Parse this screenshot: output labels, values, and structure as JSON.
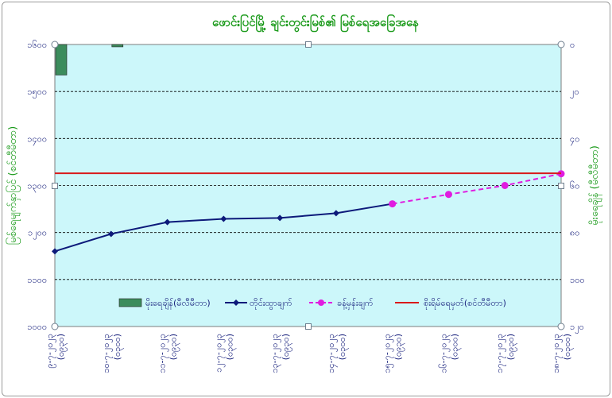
{
  "chart_data": {
    "type": "line",
    "title": "ဖောင်းပြင်မြို့ ချင်းတွင်းမြစ်၏ မြစ်ရေအခြေအနေ",
    "ylabel_left": "မြစ်ရေမျက်နှာပြင် (စင်တီမီတာ)",
    "ylabel_right": "မိုးရေချိန် (မီလီမီတာ)",
    "y_left": {
      "ylim": [
        1000,
        1600
      ],
      "ticks": [
        "၁၀၀၀",
        "၁၁၀၀",
        "၁၂၀၀",
        "၁၃၀၀",
        "၁၄၀၀",
        "၁၅၀၀",
        "၁၆၀၀"
      ]
    },
    "y_right": {
      "ylim": [
        0,
        120
      ],
      "inverted": true,
      "ticks": [
        "၀",
        "၂၀",
        "၄၀",
        "၆၀",
        "၈၀",
        "၁၀၀",
        "၁၂၀"
      ]
    },
    "categories": [
      {
        "date": "၉-၇-၂၀၂၃",
        "time": "(၀၉၃၀)"
      },
      {
        "date": "၁၀-၇-၂၀၂၃",
        "time": "(၀၃၀၀)"
      },
      {
        "date": "၁၁-၇-၂၀၂၃",
        "time": "(၀၉၃၀)"
      },
      {
        "date": "၁၂-၇-၂၀၂၃",
        "time": "(၀၃၀၀)"
      },
      {
        "date": "၁၃-၇-၂၀၂၃",
        "time": "(၀၉၃၀)"
      },
      {
        "date": "၁၄-၇-၂၀၂၃",
        "time": "(၀၃၀၀)"
      },
      {
        "date": "၁၅-၇-၂၀၂၃",
        "time": "(၀၉၃၀)"
      },
      {
        "date": "၁၆-၇-၂၀၂၃",
        "time": "(၀၃၀၀)"
      },
      {
        "date": "၁၇-၇-၂၀၂၃",
        "time": "(၀၉၃၀)"
      },
      {
        "date": "၁၈-၇-၂၀၂၃",
        "time": "(၀၃၀၀)"
      }
    ],
    "legend_placement": "bottom",
    "grid": "horizontal dashed",
    "plot_background": "#ccf7fa",
    "series": [
      {
        "name": "မိုးရေချိန်(မီလီမီတာ)",
        "type": "bar",
        "axis": "right",
        "color": "#3c8c5c",
        "values": [
          13,
          1,
          null,
          null,
          null,
          null,
          null,
          null,
          null,
          null
        ]
      },
      {
        "name": "တိုင်းထွာချက်",
        "type": "line",
        "axis": "left",
        "color": "#0d1a7a",
        "marker": "diamond",
        "values": [
          1160,
          1197,
          1222,
          1229,
          1231,
          1241,
          1261,
          null,
          null,
          null
        ]
      },
      {
        "name": "ခန့်မှန်းချက်",
        "type": "line",
        "axis": "left",
        "style": "dashed",
        "color": "#e01ce0",
        "marker": "circle",
        "values": [
          null,
          null,
          null,
          null,
          null,
          null,
          1261,
          1281,
          1300,
          1325
        ]
      },
      {
        "name": "စိုးရိမ်ရေမှတ်(စင်တီမီတာ)",
        "type": "hline",
        "axis": "left",
        "color": "#d91a1a",
        "value": 1326
      }
    ]
  }
}
